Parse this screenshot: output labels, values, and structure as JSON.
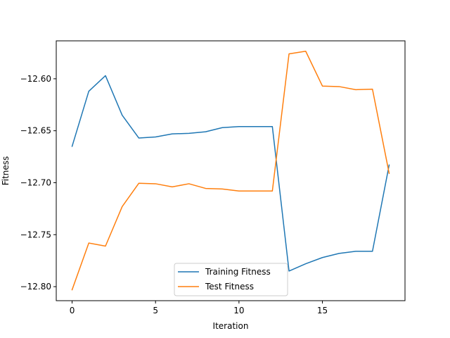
{
  "chart_data": {
    "type": "line",
    "title": "",
    "xlabel": "Iteration",
    "ylabel": "Fitness",
    "xlim": [
      -0.95,
      19.95
    ],
    "ylim": [
      -12.8135,
      -12.5635
    ],
    "xticks": [
      0,
      5,
      10,
      15
    ],
    "xtick_labels": [
      "0",
      "5",
      "10",
      "15"
    ],
    "yticks": [
      -12.8,
      -12.75,
      -12.7,
      -12.65,
      -12.6
    ],
    "ytick_labels": [
      "−12.80",
      "−12.75",
      "−12.70",
      "−12.65",
      "−12.60"
    ],
    "grid": false,
    "legend_position": "lower-center",
    "x": [
      0,
      1,
      2,
      3,
      4,
      5,
      6,
      7,
      8,
      9,
      10,
      11,
      12,
      13,
      14,
      15,
      16,
      17,
      18,
      19
    ],
    "series": [
      {
        "name": "Training Fitness",
        "color": "#1f77b4",
        "values": [
          -12.665,
          -12.612,
          -12.597,
          -12.635,
          -12.657,
          -12.656,
          -12.653,
          -12.6525,
          -12.651,
          -12.647,
          -12.646,
          -12.646,
          -12.646,
          -12.785,
          -12.778,
          -12.772,
          -12.768,
          -12.766,
          -12.766,
          -12.683
        ]
      },
      {
        "name": "Test Fitness",
        "color": "#ff7f0e",
        "values": [
          -12.803,
          -12.758,
          -12.761,
          -12.723,
          -12.7005,
          -12.701,
          -12.704,
          -12.701,
          -12.7055,
          -12.706,
          -12.708,
          -12.708,
          -12.708,
          -12.576,
          -12.5735,
          -12.607,
          -12.6075,
          -12.6105,
          -12.61,
          -12.691
        ]
      }
    ]
  }
}
